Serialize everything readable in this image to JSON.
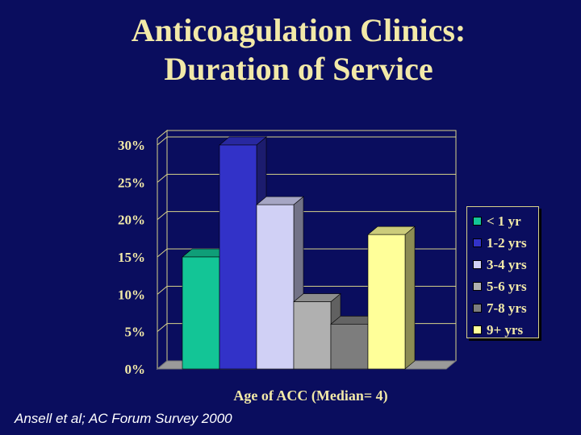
{
  "title": {
    "line1": "Anticoagulation Clinics:",
    "line2": "Duration of Service"
  },
  "source": "Ansell et al; AC Forum Survey 2000",
  "chart_data": {
    "type": "bar",
    "title": "Anticoagulation Clinics: Duration of Service",
    "xlabel": "Age of ACC (Median= 4)",
    "ylabel": "",
    "ylim": [
      0,
      30
    ],
    "yticks": [
      "0%",
      "5%",
      "10%",
      "15%",
      "20%",
      "25%",
      "30%"
    ],
    "categories": [
      "< 1 yr",
      "1-2 yrs",
      "3-4 yrs",
      "5-6 yrs",
      "7-8 yrs",
      "9+ yrs"
    ],
    "values": [
      15,
      30,
      22,
      9,
      6,
      18
    ],
    "unit": "%",
    "colors": [
      "#13c596",
      "#3232c8",
      "#d0d0f5",
      "#b0b0b0",
      "#7d7d7d",
      "#ffff99"
    ],
    "legend_position": "right"
  },
  "colors": {
    "background": "#0a0d5e",
    "title_text": "#f2e9a8",
    "plot_wall": "#0a0d5e",
    "plot_border": "#d8d28a"
  }
}
